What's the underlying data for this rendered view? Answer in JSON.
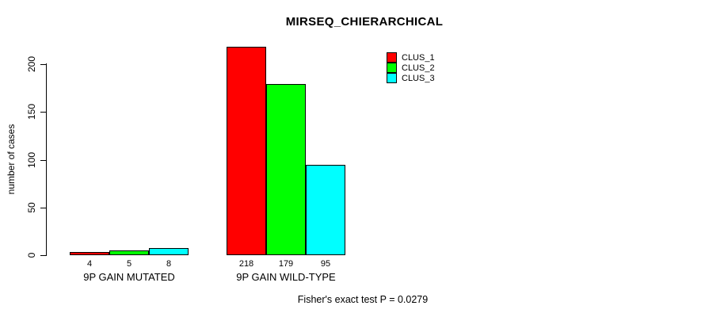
{
  "title": "MIRSEQ_CHIERARCHICAL",
  "chart_data": {
    "type": "bar",
    "title": "MIRSEQ_CHIERARCHICAL",
    "categories": [
      "9P GAIN MUTATED",
      "9P GAIN WILD-TYPE"
    ],
    "series": [
      {
        "name": "CLUS_1",
        "color": "#FF0000",
        "values": [
          4,
          218
        ]
      },
      {
        "name": "CLUS_2",
        "color": "#00FF00",
        "values": [
          5,
          179
        ]
      },
      {
        "name": "CLUS_3",
        "color": "#00FFFF",
        "values": [
          8,
          95
        ]
      }
    ],
    "bar_value_labels": [
      [
        "4",
        "5",
        "8"
      ],
      [
        "218",
        "179",
        "95"
      ]
    ],
    "xlabel": "",
    "ylabel": "number of cases",
    "ylim": [
      0,
      220
    ],
    "yticks": [
      0,
      50,
      100,
      150,
      200
    ],
    "grid": false,
    "legend_position": "top-right",
    "annotation": "Fisher's exact test P = 0.0279"
  },
  "colors": {
    "background": "#ffffff",
    "axis": "#000000",
    "text": "#000000"
  }
}
